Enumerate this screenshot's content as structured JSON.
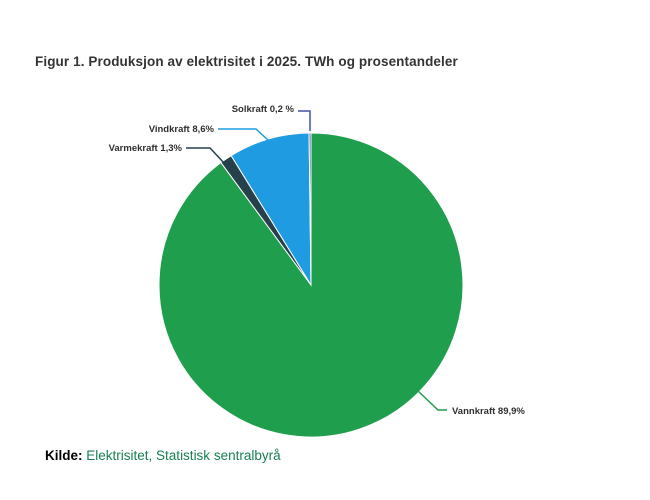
{
  "title": "Figur 1. Produksjon av elektrisitet i 2025. TWh og prosentandeler",
  "source": {
    "prefix": "Kilde:",
    "text": "Elektrisitet, Statistisk sentralbyrå",
    "link_color": "#168052"
  },
  "chart_data": {
    "type": "pie",
    "title": "Figur 1. Produksjon av elektrisitet i 2025. TWh og prosentandeler",
    "unit": "percent",
    "direction": "clockwise",
    "start_angle_deg": 0,
    "legend": "none (inline callout labels)",
    "slices": [
      {
        "label": "Vannkraft",
        "value_pct": 89.9,
        "display": "Vannkraft 89,9%",
        "color": "#1F9E4D"
      },
      {
        "label": "Varmekraft",
        "value_pct": 1.3,
        "display": "Varmekraft 1,3%",
        "color": "#26404C"
      },
      {
        "label": "Vindkraft",
        "value_pct": 8.6,
        "display": "Vindkraft 8,6%",
        "color": "#1F9BE1"
      },
      {
        "label": "Solkraft",
        "value_pct": 0.2,
        "display": "Solkraft 0,2 %",
        "color": "#4052A3"
      }
    ]
  }
}
